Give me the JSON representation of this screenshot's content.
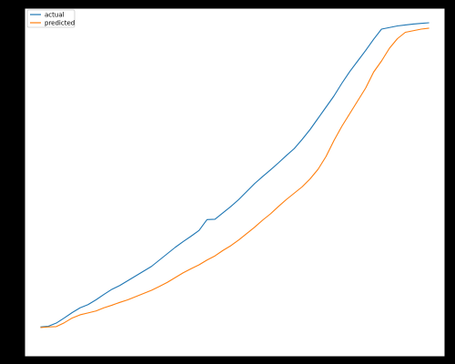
{
  "chart_data": {
    "type": "line",
    "title": "",
    "xlabel": "",
    "ylabel": "",
    "grid": false,
    "legend_position": "top-left",
    "x": [
      0,
      1,
      2,
      3,
      4,
      5,
      6,
      7,
      8,
      9,
      10,
      11,
      12,
      13,
      14,
      15,
      16,
      17,
      18,
      19,
      20,
      21,
      22,
      23,
      24,
      25,
      26,
      27,
      28,
      29,
      30,
      31,
      32,
      33,
      34,
      35,
      36,
      37,
      38,
      39,
      40,
      41,
      42,
      43,
      44,
      45,
      46,
      47,
      48,
      49
    ],
    "xlim": [
      -2,
      51
    ],
    "ylim": [
      0,
      100
    ],
    "series": [
      {
        "name": "actual",
        "color": "#1f77b4",
        "values": [
          4.5,
          4.7,
          5.7,
          7.3,
          9.0,
          10.5,
          11.5,
          13.0,
          14.7,
          16.3,
          17.5,
          19.0,
          20.5,
          22.0,
          23.5,
          25.5,
          27.5,
          29.5,
          31.3,
          33.0,
          34.8,
          38.2,
          38.3,
          40.3,
          42.3,
          44.5,
          47.0,
          49.5,
          51.7,
          53.8,
          56.0,
          58.3,
          60.5,
          63.4,
          66.5,
          70.0,
          73.5,
          77.0,
          81.0,
          84.7,
          88.0,
          91.3,
          94.8,
          98.0,
          98.5,
          99.0,
          99.3,
          99.6,
          99.8,
          100.0
        ]
      },
      {
        "name": "predicted",
        "color": "#ff7f0e",
        "values": [
          4.3,
          4.5,
          4.6,
          5.8,
          7.3,
          8.3,
          8.9,
          9.5,
          10.5,
          11.3,
          12.2,
          13.0,
          14.0,
          15.0,
          16.0,
          17.2,
          18.5,
          20.0,
          21.5,
          22.8,
          24.0,
          25.5,
          26.8,
          28.5,
          30.0,
          31.8,
          33.8,
          35.8,
          38.0,
          40.0,
          42.3,
          44.5,
          46.5,
          48.5,
          51.0,
          54.0,
          58.0,
          63.0,
          67.5,
          71.5,
          75.5,
          79.5,
          84.5,
          88.0,
          92.0,
          95.0,
          97.0,
          97.5,
          98.0,
          98.3
        ]
      }
    ]
  }
}
